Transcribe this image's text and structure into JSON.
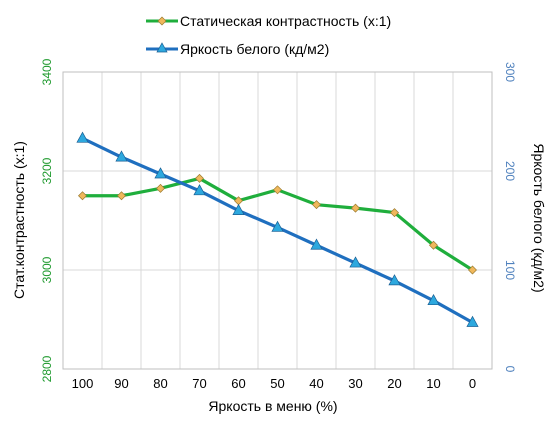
{
  "chart_data": {
    "type": "line",
    "legend_position": "top",
    "grid": true,
    "categories": [
      "100",
      "90",
      "80",
      "70",
      "60",
      "50",
      "40",
      "30",
      "20",
      "10",
      "0"
    ],
    "xlabel": "Яркость в меню (%)",
    "left_axis": {
      "label": "Стат.контрастность  (х:1)",
      "min": 2800,
      "max": 3400,
      "ticks": [
        "2800",
        "3000",
        "3200",
        "3400"
      ],
      "color": "#1f9a2e"
    },
    "right_axis": {
      "label": "Яркость белого (кд/м2)",
      "min": 0,
      "max": 300,
      "ticks": [
        "0",
        "100",
        "200",
        "300"
      ],
      "color": "#4f81bd"
    },
    "series": [
      {
        "name": "Статическая контрастность (х:1)",
        "axis": "left",
        "color": "#1fae3c",
        "marker_color": "#f0b85c",
        "marker": "diamond",
        "values": [
          3150,
          3150,
          3165,
          3185,
          3140,
          3162,
          3132,
          3125,
          3116,
          3050,
          3000
        ]
      },
      {
        "name": "Яркость белого (кд/м2)",
        "axis": "right",
        "color": "#1f6fbf",
        "marker_color": "#2da8de",
        "marker": "triangle",
        "values": [
          233,
          214,
          197,
          180,
          160,
          143,
          125,
          107,
          89,
          69,
          47
        ]
      }
    ]
  }
}
